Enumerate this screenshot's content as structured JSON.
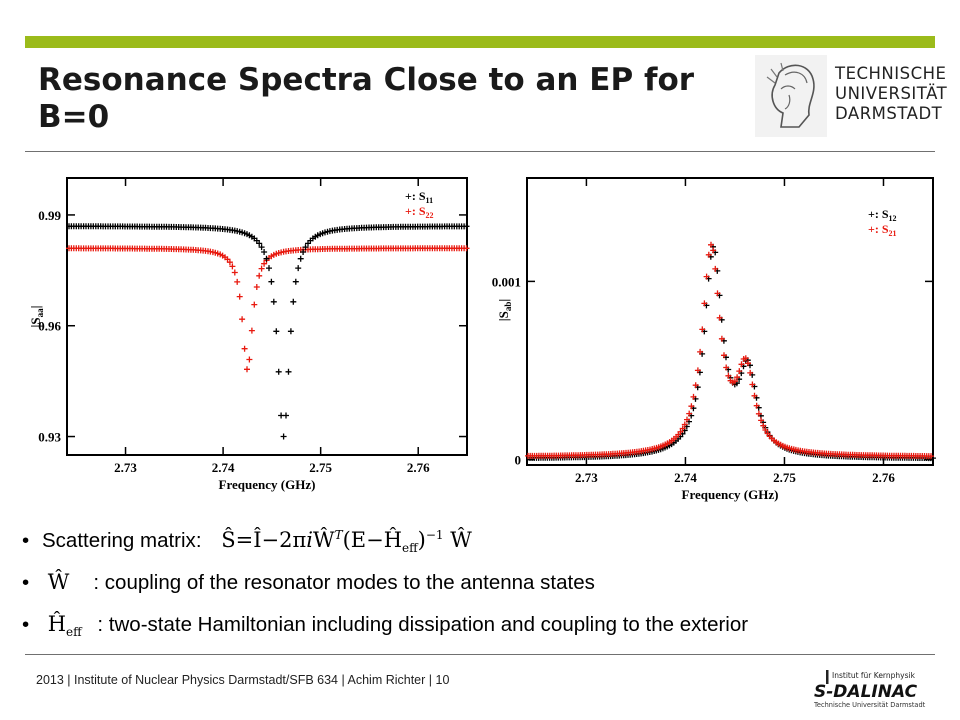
{
  "slide": {
    "title_line1": "Resonance Spectra Close to an EP for",
    "title_line2": "B=0"
  },
  "logo": {
    "line1": "TECHNISCHE",
    "line2": "UNIVERSITÄT",
    "line3": "DARMSTADT"
  },
  "chart_data": [
    {
      "type": "scatter",
      "title": "",
      "xlabel": "Frequency (GHz)",
      "ylabel": "|S_aa|",
      "xlim": [
        2.724,
        2.765
      ],
      "ylim": [
        0.925,
        1.0
      ],
      "xticks": [
        2.73,
        2.74,
        2.75,
        2.76
      ],
      "xtick_labels": [
        "2.73",
        "2.74",
        "2.75",
        "2.76"
      ],
      "yticks": [
        0.93,
        0.96,
        0.99
      ],
      "ytick_labels": [
        "0.93",
        "0.96",
        "0.99"
      ],
      "legend_position": "top-right",
      "series": [
        {
          "name": "+: S11",
          "marker": "+",
          "color": "#000000",
          "baseline": 0.987,
          "center": 2.7462,
          "depth": 0.057,
          "width": 0.00075
        },
        {
          "name": "+: S22",
          "marker": "+",
          "color": "#e8190f",
          "baseline": 0.981,
          "center": 2.7425,
          "depth": 0.033,
          "width": 0.00065
        }
      ]
    },
    {
      "type": "scatter",
      "title": "",
      "xlabel": "Frequency (GHz)",
      "ylabel": "|S_ab|",
      "xlim": [
        2.724,
        2.765
      ],
      "ylim": [
        -3e-05,
        0.00158
      ],
      "xticks": [
        2.73,
        2.74,
        2.75,
        2.76
      ],
      "xtick_labels": [
        "2.73",
        "2.74",
        "2.75",
        "2.76"
      ],
      "yticks": [
        0,
        0.001
      ],
      "ytick_labels": [
        "0",
        "0.001"
      ],
      "legend_position": "top-right",
      "series": [
        {
          "name": "+: S12",
          "marker": "+",
          "color": "#000000"
        },
        {
          "name": "+: S21",
          "marker": "+",
          "color": "#e8190f"
        }
      ],
      "peaks": [
        {
          "center": 2.7427,
          "height": 0.00115,
          "width": 0.0011
        },
        {
          "center": 2.7462,
          "height": 0.00045,
          "width": 0.0011
        }
      ],
      "background": 1e-05
    }
  ],
  "bullets": {
    "b1_text": "Scattering matrix",
    "b1_colon": ":",
    "b2_text": ": coupling of the resonator modes to the antenna states",
    "b3_text": ": two-state Hamiltonian including dissipation and coupling to the exterior"
  },
  "footer": {
    "text": "2013  |  Institute of Nuclear Physics Darmstadt/SFB 634  |  Achim Richter  |  10"
  },
  "dalinac": {
    "line1": "Institut für Kernphysik",
    "line2": "S-DALINAC",
    "line3": "Technische Universität Darmstadt"
  },
  "colors": {
    "accent_bar": "#9bbb1a",
    "series_black": "#000000",
    "series_red": "#e8190f"
  }
}
